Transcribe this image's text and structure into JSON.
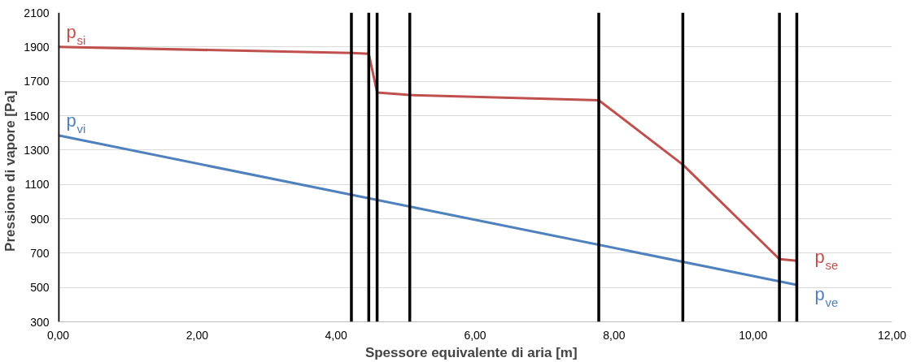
{
  "chart_data": {
    "type": "line",
    "xlabel": "Spessore equivalente di aria   [m]",
    "ylabel": "Pressione di vapore   [Pa]",
    "series": [
      {
        "color": "#c0504d",
        "x": [
          0,
          4.22,
          4.47,
          4.59,
          5.06,
          7.78,
          8.99,
          10.38,
          10.63
        ],
        "values": [
          1900,
          1865,
          1860,
          1635,
          1620,
          1590,
          1215,
          665,
          655
        ]
      },
      {
        "color": "#4f81bd",
        "x": [
          0,
          10.63
        ],
        "values": [
          1385,
          515
        ]
      }
    ],
    "xlim": [
      0,
      12
    ],
    "ylim": [
      300,
      2100
    ],
    "xticks": [
      {
        "value": 0,
        "label": "0,00"
      },
      {
        "value": 2,
        "label": "2,00"
      },
      {
        "value": 4,
        "label": "4,00"
      },
      {
        "value": 6,
        "label": "6,00"
      },
      {
        "value": 8,
        "label": "8,00"
      },
      {
        "value": 10,
        "label": "10,00"
      },
      {
        "value": 12,
        "label": "12,00"
      }
    ],
    "yticks": [
      300,
      500,
      700,
      900,
      1100,
      1300,
      1500,
      1700,
      1900,
      2100
    ],
    "grid": "y",
    "ref_lines": [
      {
        "axis": "x",
        "value": 0,
        "color": "#000000"
      },
      {
        "axis": "x",
        "value": 4.22,
        "color": "#000000"
      },
      {
        "axis": "x",
        "value": 4.47,
        "color": "#000000"
      },
      {
        "axis": "x",
        "value": 4.59,
        "color": "#000000"
      },
      {
        "axis": "x",
        "value": 5.06,
        "color": "#000000"
      },
      {
        "axis": "x",
        "value": 7.78,
        "color": "#000000"
      },
      {
        "axis": "x",
        "value": 8.99,
        "color": "#000000"
      },
      {
        "axis": "x",
        "value": 10.38,
        "color": "#000000"
      },
      {
        "axis": "x",
        "value": 10.63,
        "color": "#000000"
      }
    ],
    "annotations": [
      "p$_{si}$",
      "p$_{vi}$",
      "p$_{se}$",
      "p$_{ve}$"
    ]
  }
}
